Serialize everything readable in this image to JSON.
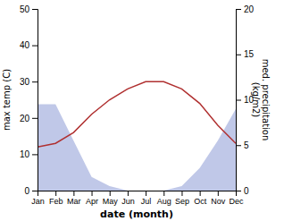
{
  "chart_data": {
    "type": "line",
    "categories": [
      "Jan",
      "Feb",
      "Mar",
      "Apr",
      "May",
      "Jun",
      "Jul",
      "Aug",
      "Sep",
      "Oct",
      "Nov",
      "Dec"
    ],
    "xlabel": "date (month)",
    "ylabel": "max temp (C)",
    "y2label": "med. precipitation\n(kg/m2)",
    "ylim": [
      0,
      50
    ],
    "yticks": [
      0,
      10,
      20,
      30,
      40,
      50
    ],
    "y2lim": [
      0,
      20
    ],
    "y2ticks": [
      0,
      5,
      10,
      15,
      20
    ],
    "series": [
      {
        "type": "area",
        "axis": "y2",
        "color": "#c0c8e8",
        "values": [
          9.5,
          9.5,
          5.5,
          1.5,
          0.5,
          0.0,
          0.0,
          0.0,
          0.5,
          2.5,
          5.5,
          9.0
        ]
      },
      {
        "type": "line",
        "color": "#b03030",
        "values": [
          12,
          13,
          16,
          21,
          25,
          28,
          30,
          30,
          28,
          24,
          18,
          13
        ]
      }
    ]
  }
}
